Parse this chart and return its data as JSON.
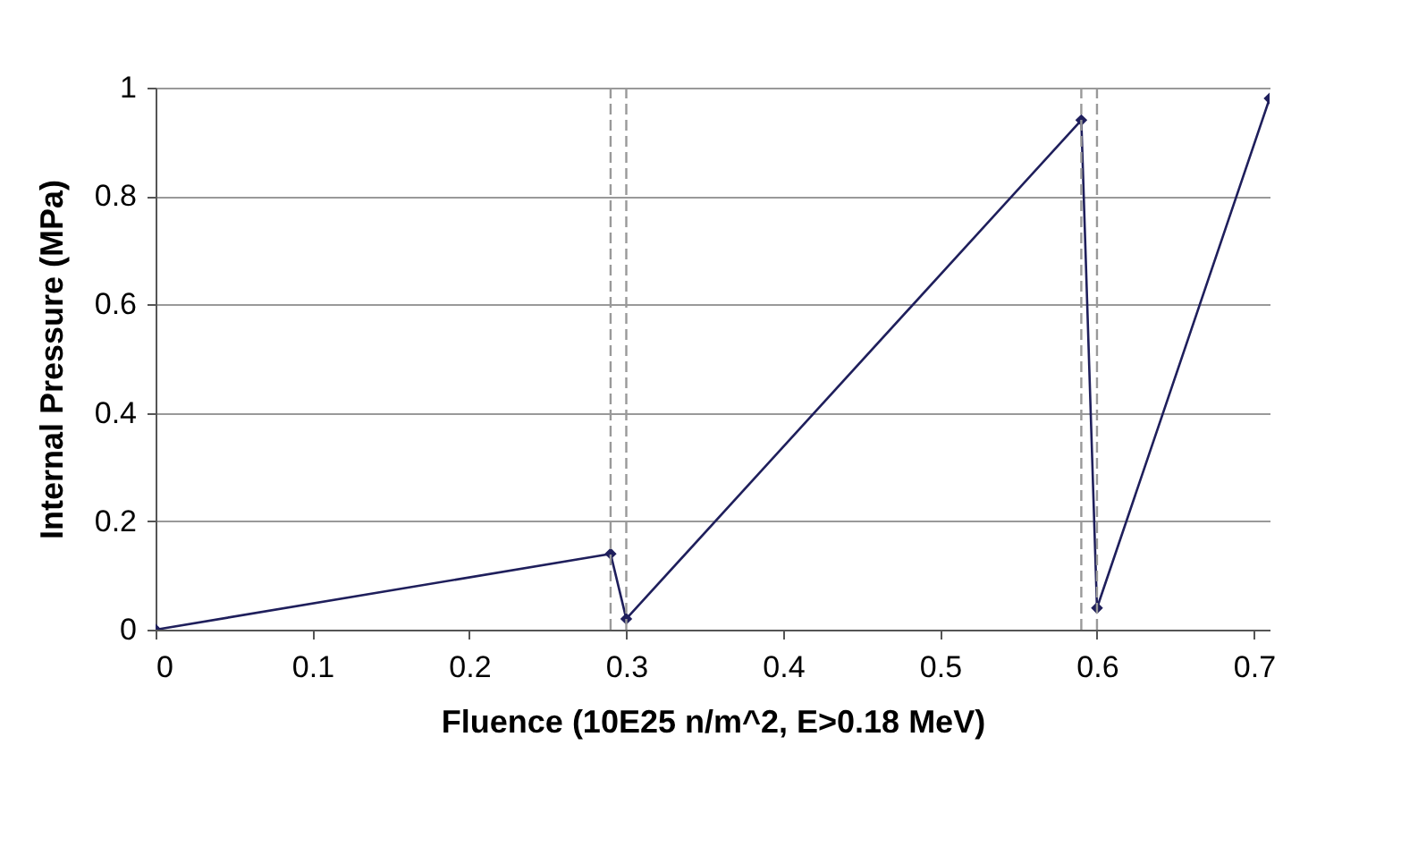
{
  "chart_data": {
    "type": "line",
    "xlabel": "Fluence (10E25 n/m^2, E>0.18 MeV)",
    "ylabel": "Internal Pressure (MPa)",
    "x": [
      0,
      0.29,
      0.3,
      0.59,
      0.6,
      0.71
    ],
    "series": [
      {
        "color": "#1f1f5c",
        "values": [
          0,
          0.14,
          0.02,
          0.94,
          0.04,
          0.98
        ]
      }
    ],
    "xlim": [
      0,
      0.71
    ],
    "xticks": [
      0,
      0.1,
      0.2,
      0.3,
      0.4,
      0.5,
      0.6,
      0.7
    ],
    "ylim": [
      0,
      1
    ],
    "yticks": [
      0,
      0.2,
      0.4,
      0.6,
      0.8,
      1
    ],
    "grid": "y",
    "marker": "diamond",
    "line_style": "solid",
    "ref_lines": [
      {
        "axis": "x",
        "value": 0.29,
        "color": "#999999",
        "line_style": "dashed"
      },
      {
        "axis": "x",
        "value": 0.3,
        "color": "#999999",
        "line_style": "dashed"
      },
      {
        "axis": "x",
        "value": 0.59,
        "color": "#999999",
        "line_style": "dashed"
      },
      {
        "axis": "x",
        "value": 0.6,
        "color": "#999999",
        "line_style": "dashed"
      }
    ]
  }
}
